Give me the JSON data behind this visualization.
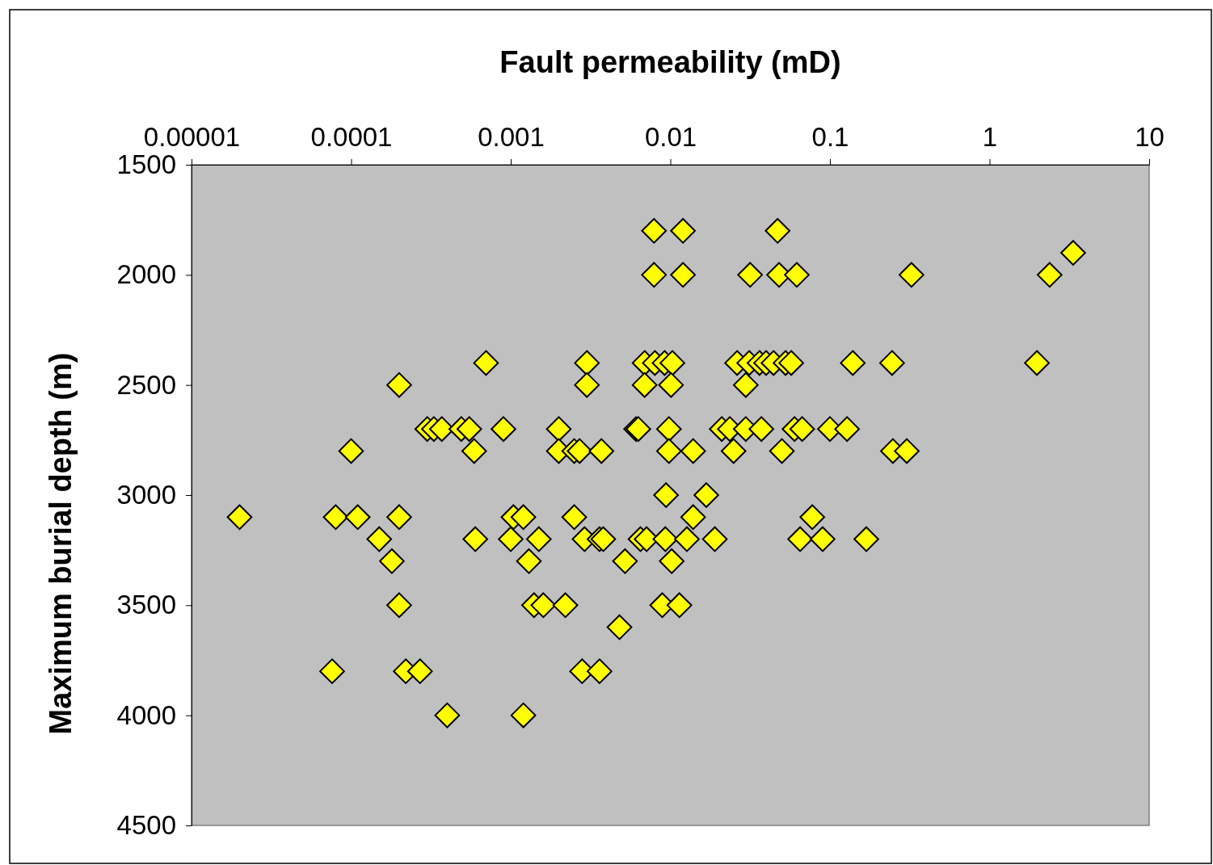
{
  "chart_data": {
    "type": "scatter",
    "xlabel": "Fault permeability (mD)",
    "ylabel": "Maximum burial depth (m)",
    "log": "x",
    "marker": "diamond",
    "grid": false,
    "xlim": [
      1e-05,
      10
    ],
    "xticks": [
      {
        "value": 1e-05,
        "label": "0.00001"
      },
      0.0001,
      0.001,
      0.01,
      0.1,
      1,
      10
    ],
    "ylim": [
      4500,
      1500
    ],
    "yticks": [
      1500,
      2000,
      2500,
      3000,
      3500,
      4000,
      4500
    ],
    "series": [
      {
        "color": "#ffff00",
        "x": [
          0.0079,
          0.012,
          0.047,
          3.34,
          0.0079,
          0.012,
          0.0316,
          0.048,
          0.062,
          0.324,
          2.38,
          0.0007,
          0.003,
          0.0069,
          0.008,
          0.0092,
          0.0103,
          0.0262,
          0.0312,
          0.0362,
          0.0398,
          0.0443,
          0.0527,
          0.0572,
          0.139,
          0.245,
          1.98,
          0.0002,
          0.003,
          0.0069,
          0.0101,
          0.0297,
          0.0003,
          0.00033,
          0.00037,
          0.00049,
          0.00055,
          0.0009,
          0.002,
          0.0061,
          0.0063,
          0.0098,
          0.021,
          0.0236,
          0.0297,
          0.0372,
          0.06,
          0.067,
          0.1,
          0.128,
          0.0001,
          0.00059,
          0.002,
          0.0025,
          0.0027,
          0.0037,
          0.0098,
          0.0139,
          0.0249,
          0.05,
          0.248,
          0.303,
          0.0094,
          0.0168,
          2e-05,
          8e-05,
          0.00011,
          0.0002,
          0.00104,
          0.0012,
          0.0025,
          0.0139,
          0.0775,
          0.00015,
          0.0006,
          0.001,
          0.0015,
          0.0029,
          0.0036,
          0.0038,
          0.0065,
          0.0071,
          0.0093,
          0.0127,
          0.019,
          0.065,
          0.09,
          0.169,
          0.00018,
          0.0013,
          0.0052,
          0.0102,
          0.0002,
          0.0014,
          0.0016,
          0.0022,
          0.0089,
          0.0114,
          0.0048,
          7.6e-05,
          0.00022,
          0.00027,
          0.0028,
          0.0036,
          0.0004,
          0.0012
        ],
        "values": [
          1800,
          1800,
          1800,
          1900,
          2000,
          2000,
          2000,
          2000,
          2000,
          2000,
          2000,
          2400,
          2400,
          2400,
          2400,
          2400,
          2400,
          2400,
          2400,
          2400,
          2400,
          2400,
          2400,
          2400,
          2400,
          2400,
          2400,
          2500,
          2500,
          2500,
          2500,
          2500,
          2700,
          2700,
          2700,
          2700,
          2700,
          2700,
          2700,
          2700,
          2700,
          2700,
          2700,
          2700,
          2700,
          2700,
          2700,
          2700,
          2700,
          2700,
          2800,
          2800,
          2800,
          2800,
          2800,
          2800,
          2800,
          2800,
          2800,
          2800,
          2800,
          2800,
          3000,
          3000,
          3100,
          3100,
          3100,
          3100,
          3100,
          3100,
          3100,
          3100,
          3100,
          3200,
          3200,
          3200,
          3200,
          3200,
          3200,
          3200,
          3200,
          3200,
          3200,
          3200,
          3200,
          3200,
          3200,
          3200,
          3300,
          3300,
          3300,
          3300,
          3500,
          3500,
          3500,
          3500,
          3500,
          3500,
          3600,
          3800,
          3800,
          3800,
          3800,
          3800,
          4000,
          4000
        ]
      }
    ]
  }
}
